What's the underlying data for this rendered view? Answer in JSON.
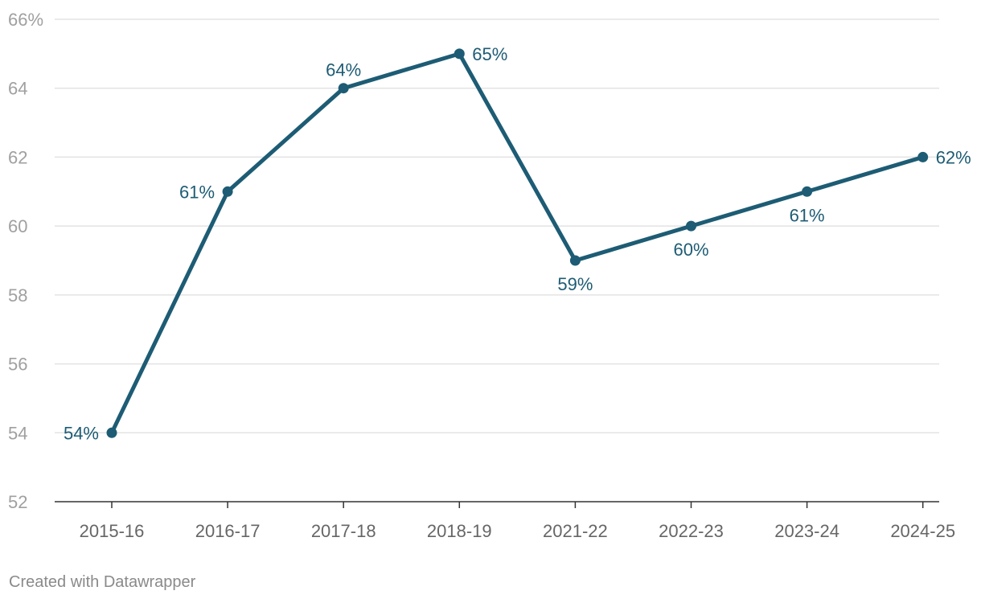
{
  "chart_data": {
    "type": "line",
    "categories": [
      "2015-16",
      "2016-17",
      "2017-18",
      "2018-19",
      "2021-22",
      "2022-23",
      "2023-24",
      "2024-25"
    ],
    "series": [
      {
        "values": [
          54,
          61,
          64,
          65,
          59,
          60,
          61,
          62
        ],
        "labels": [
          "54%",
          "61%",
          "64%",
          "65%",
          "59%",
          "60%",
          "61%",
          "62%"
        ],
        "color": "#1d5c74"
      }
    ],
    "ylim": [
      52,
      66
    ],
    "yticks": [
      52,
      54,
      56,
      58,
      60,
      62,
      64,
      66
    ],
    "ytick_labels": [
      "52",
      "54",
      "56",
      "58",
      "60",
      "62",
      "64",
      "66%"
    ],
    "grid": true,
    "gridline_color": "#e3e3e3",
    "title": "",
    "xlabel": "",
    "ylabel": ""
  },
  "footer": {
    "credit": "Created with Datawrapper"
  }
}
